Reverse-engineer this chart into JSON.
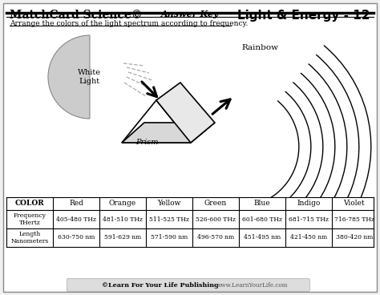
{
  "title_left": "MatchCard Science©",
  "title_center": "Answer Key",
  "title_right": "Light & Energy - 12",
  "subtitle": "Arrange the colors of the light spectrum according to frequency.",
  "white_light_label": "White\nLight",
  "rainbow_label": "Rainbow",
  "prism_label": "Prism",
  "table_headers": [
    "COLOR",
    "Red",
    "Orange",
    "Yellow",
    "Green",
    "Blue",
    "Indigo",
    "Violet"
  ],
  "row1_label": "Frequency\nTHertz",
  "row1_values": [
    "405-480 THz",
    "481-510 THz",
    "511-525 THz",
    "526-600 THz",
    "601-680 THz",
    "681-715 THz",
    "716-785 THz"
  ],
  "row2_label": "Length\nNanometers",
  "row2_values": [
    "630-750 nm",
    "591-629 nm",
    "571-590 nm",
    "496-570 nm",
    "451-495 nm",
    "421-450 nm",
    "380-420 nm"
  ],
  "footer_bold": "©Learn For Your Life Publishing",
  "footer_url": "www.LearnYourLife.com",
  "bg_color": "#f0f0f0",
  "white_color": "#ffffff"
}
